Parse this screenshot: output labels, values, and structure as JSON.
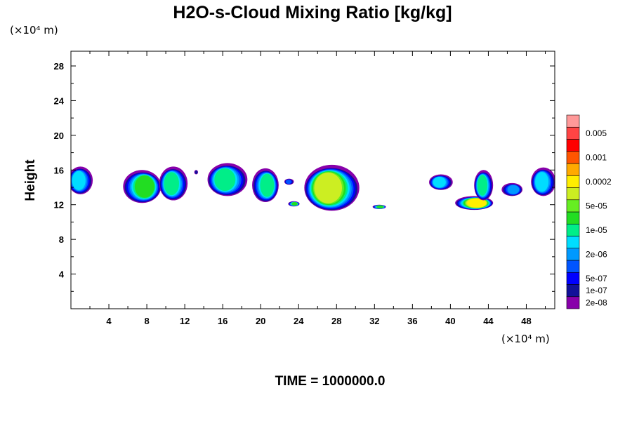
{
  "chart_data": {
    "type": "heatmap",
    "title": "H2O-s-Cloud Mixing Ratio [kg/kg]",
    "x_unit": "(×10⁴ m)",
    "y_unit": "(×10⁴ m)",
    "ylabel": "Height",
    "xlabel": "",
    "x_range": [
      0,
      51
    ],
    "y_range": [
      0,
      29.7
    ],
    "x_ticks": [
      "4",
      "8",
      "12",
      "16",
      "20",
      "24",
      "28",
      "32",
      "36",
      "40",
      "44",
      "48"
    ],
    "y_ticks": [
      "4",
      "8",
      "12",
      "16",
      "20",
      "24",
      "28"
    ],
    "footer": "TIME = 1000000.0",
    "colorbar": {
      "levels": [
        "0.005",
        "0.001",
        "0.0002",
        "5e-05",
        "1e-05",
        "2e-06",
        "5e-07",
        "1e-07",
        "2e-08"
      ],
      "colors": [
        "#8800aa",
        "#111199",
        "#0000ff",
        "#0055ff",
        "#0099ff",
        "#00ddff",
        "#00ee88",
        "#22dd22",
        "#66ee22",
        "#ccee22",
        "#ffee00",
        "#ffaa00",
        "#ff5500",
        "#ff0000",
        "#ff4444",
        "#ff9999"
      ]
    },
    "cloud_cells": [
      {
        "x": 1.0,
        "top": 16.4,
        "bottom": 13.2,
        "width": 2.6,
        "level": 5
      },
      {
        "x": 7.5,
        "top": 16.0,
        "bottom": 12.2,
        "width": 4.0,
        "level": 7
      },
      {
        "x": 10.8,
        "top": 16.4,
        "bottom": 12.5,
        "width": 3.0,
        "level": 6
      },
      {
        "x": 13.2,
        "top": 16.0,
        "bottom": 15.5,
        "width": 0.4,
        "level": 1
      },
      {
        "x": 16.5,
        "top": 16.8,
        "bottom": 13.0,
        "width": 4.2,
        "level": 6
      },
      {
        "x": 20.5,
        "top": 16.2,
        "bottom": 12.3,
        "width": 2.8,
        "level": 6
      },
      {
        "x": 23.0,
        "top": 15.0,
        "bottom": 14.3,
        "width": 1.0,
        "level": 3
      },
      {
        "x": 23.5,
        "top": 12.4,
        "bottom": 11.8,
        "width": 1.2,
        "level": 7
      },
      {
        "x": 27.5,
        "top": 16.6,
        "bottom": 11.3,
        "width": 5.8,
        "level": 9
      },
      {
        "x": 32.5,
        "top": 12.0,
        "bottom": 11.5,
        "width": 1.4,
        "level": 7
      },
      {
        "x": 39.0,
        "top": 15.5,
        "bottom": 13.7,
        "width": 2.5,
        "level": 5
      },
      {
        "x": 42.5,
        "top": 13.0,
        "bottom": 11.4,
        "width": 4.0,
        "level": 10
      },
      {
        "x": 43.5,
        "top": 16.0,
        "bottom": 12.5,
        "width": 2.0,
        "level": 6
      },
      {
        "x": 46.5,
        "top": 14.5,
        "bottom": 13.0,
        "width": 2.2,
        "level": 4
      },
      {
        "x": 49.8,
        "top": 16.3,
        "bottom": 13.0,
        "width": 2.6,
        "level": 5
      }
    ]
  }
}
